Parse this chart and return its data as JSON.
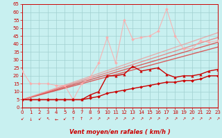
{
  "xlabel": "Vent moyen/en rafales ( km/h )",
  "bg_color": "#c8f0f0",
  "grid_color": "#a0d0d0",
  "label_color": "#cc0000",
  "xmin": 0,
  "xmax": 23,
  "ymin": 0,
  "ymax": 65,
  "yticks": [
    0,
    5,
    10,
    15,
    20,
    25,
    30,
    35,
    40,
    45,
    50,
    55,
    60,
    65
  ],
  "xticks": [
    0,
    1,
    2,
    3,
    4,
    5,
    6,
    7,
    8,
    9,
    10,
    11,
    12,
    13,
    14,
    15,
    16,
    17,
    18,
    19,
    20,
    21,
    22,
    23
  ],
  "wind_arrows": [
    "↙",
    "↓",
    "↙",
    "↖",
    "←",
    "↙",
    "↑",
    "↑",
    "↗",
    "↗",
    "↗",
    "↗",
    "↗",
    "↗",
    "↗",
    "↗",
    "↗",
    "↗",
    "↗",
    "↗",
    "↗",
    "↗",
    "↗",
    "↗"
  ],
  "lines": [
    {
      "x": [
        0,
        1,
        2,
        3,
        4,
        5,
        6,
        7,
        8,
        9,
        10,
        11,
        12,
        13,
        14,
        15,
        16,
        17,
        18,
        19,
        20,
        21,
        22,
        23
      ],
      "y": [
        5,
        5,
        5,
        5,
        5,
        5,
        5,
        5,
        6,
        7,
        9,
        10,
        11,
        12,
        13,
        14,
        15,
        16,
        16,
        17,
        17,
        18,
        20,
        20
      ],
      "color": "#cc0000",
      "lw": 1.0,
      "marker": "D",
      "ms": 2.0,
      "alpha": 1.0,
      "zorder": 5
    },
    {
      "x": [
        0,
        1,
        2,
        3,
        4,
        5,
        6,
        7,
        8,
        9,
        10,
        11,
        12,
        13,
        14,
        15,
        16,
        17,
        18,
        19,
        20,
        21,
        22,
        23
      ],
      "y": [
        5,
        5,
        5,
        5,
        5,
        5,
        5,
        5,
        8,
        10,
        20,
        20,
        21,
        26,
        23,
        24,
        25,
        21,
        19,
        20,
        20,
        21,
        23,
        24
      ],
      "color": "#cc0000",
      "lw": 1.0,
      "marker": "^",
      "ms": 2.5,
      "alpha": 1.0,
      "zorder": 5
    },
    {
      "x": [
        0,
        23
      ],
      "y": [
        5,
        38
      ],
      "color": "#dd4444",
      "lw": 1.0,
      "marker": null,
      "ms": 0,
      "alpha": 0.85,
      "zorder": 3
    },
    {
      "x": [
        0,
        23
      ],
      "y": [
        5,
        41
      ],
      "color": "#dd4444",
      "lw": 1.0,
      "marker": null,
      "ms": 0,
      "alpha": 0.85,
      "zorder": 3
    },
    {
      "x": [
        0,
        23
      ],
      "y": [
        5,
        44
      ],
      "color": "#ee7777",
      "lw": 1.0,
      "marker": null,
      "ms": 0,
      "alpha": 0.8,
      "zorder": 3
    },
    {
      "x": [
        0,
        23
      ],
      "y": [
        5,
        47
      ],
      "color": "#ee9999",
      "lw": 1.0,
      "marker": null,
      "ms": 0,
      "alpha": 0.75,
      "zorder": 3
    },
    {
      "x": [
        0,
        1,
        2,
        3,
        4,
        5,
        6,
        7,
        8,
        9,
        10,
        11,
        12,
        13,
        14,
        15,
        16,
        17,
        18,
        19,
        20,
        21,
        22,
        23
      ],
      "y": [
        23,
        15,
        15,
        15,
        14,
        14,
        5,
        15,
        19,
        28,
        44,
        28,
        55,
        43,
        44,
        45,
        48,
        62,
        45,
        37,
        37,
        42,
        41,
        42
      ],
      "color": "#ffaaaa",
      "lw": 0.8,
      "marker": "D",
      "ms": 2.0,
      "alpha": 0.85,
      "zorder": 4
    }
  ]
}
